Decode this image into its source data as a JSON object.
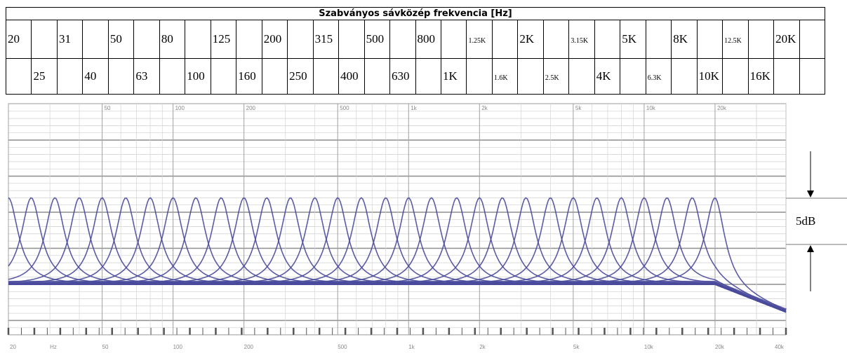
{
  "table": {
    "title": "Szabványos sávközép frekvencia [Hz]",
    "bands": [
      "20",
      "25",
      "31",
      "40",
      "50",
      "63",
      "80",
      "100",
      "125",
      "160",
      "200",
      "250",
      "315",
      "400",
      "500",
      "630",
      "800",
      "1K",
      "1.25K",
      "1.6K",
      "2K",
      "2.5K",
      "3.15K",
      "4K",
      "5K",
      "6.3K",
      "8K",
      "10K",
      "12.5K",
      "16K",
      "20K"
    ],
    "small_bands": [
      "1.25K",
      "1.6K",
      "2.5K",
      "3.15K",
      "6.3K",
      "12.5K"
    ]
  },
  "annotation": {
    "label": "5dB",
    "color": "#000000"
  },
  "chart_data": {
    "type": "line",
    "title": "",
    "xlabel": "",
    "ylabel": "",
    "x_scale": "log",
    "xlim": [
      20,
      40000
    ],
    "grid": true,
    "top_tick_labels": [
      "50",
      "100",
      "200",
      "500",
      "1k",
      "2k",
      "5k",
      "10k",
      "20k"
    ],
    "bottom_tick_labels": [
      "20",
      "Hz",
      "50",
      "100",
      "200",
      "500",
      "1k",
      "2k",
      "5k",
      "10k",
      "20k",
      "40k"
    ],
    "series_center_frequencies_hz": [
      20,
      25,
      31.5,
      40,
      50,
      63,
      80,
      100,
      125,
      160,
      200,
      250,
      315,
      400,
      500,
      630,
      800,
      1000,
      1250,
      1600,
      2000,
      2500,
      3150,
      4000,
      5000,
      6300,
      8000,
      10000,
      12500,
      16000,
      20000
    ],
    "peak_gain_db": 12,
    "baseline_db": 0,
    "line_color": "#4a4a9c",
    "grid_color": "#9a9a9a"
  }
}
